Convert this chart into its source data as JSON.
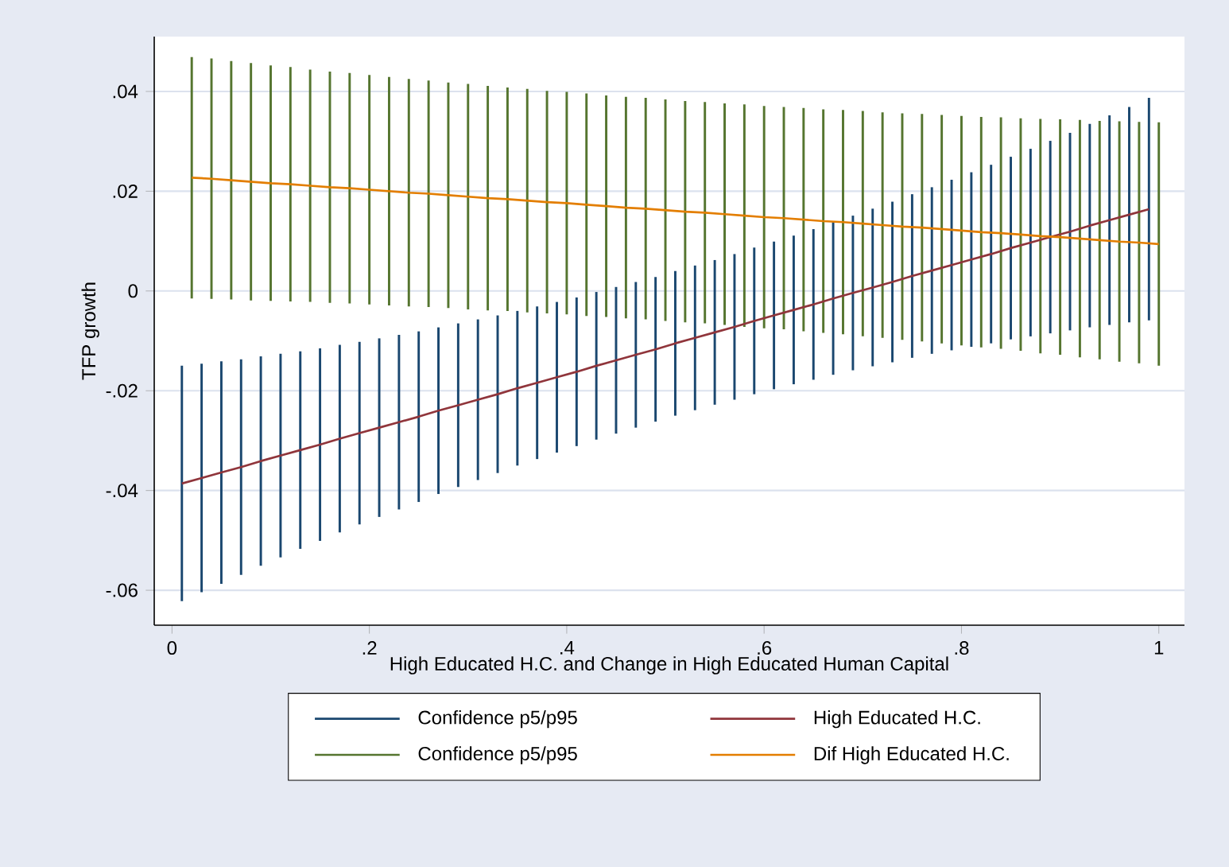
{
  "chart_data": {
    "type": "line",
    "xlabel": "High Educated H.C. and Change in High Educated Human Capital",
    "ylabel": "TFP growth",
    "xlim": [
      -0.018,
      1.026
    ],
    "ylim": [
      -0.067,
      0.051
    ],
    "xticks": [
      0,
      {
        "value": 0.2,
        "label": ".2"
      },
      {
        "value": 0.4,
        "label": ".4"
      },
      {
        "value": 0.6,
        "label": ".6"
      },
      {
        "value": 0.8,
        "label": ".8"
      },
      1
    ],
    "yticks": [
      {
        "value": -0.06,
        "label": "-.06"
      },
      {
        "value": -0.04,
        "label": "-.04"
      },
      {
        "value": -0.02,
        "label": "-.02"
      },
      0,
      {
        "value": 0.02,
        "label": ".02"
      },
      {
        "value": 0.04,
        "label": ".04"
      }
    ],
    "grid": "y",
    "legend": "bottom",
    "series": [
      {
        "name": "Confidence p5/p95",
        "type": "bar",
        "color": "#1a476f",
        "x": [
          0.01,
          0.03,
          0.05,
          0.07,
          0.09,
          0.11,
          0.13,
          0.15,
          0.17,
          0.19,
          0.21,
          0.23,
          0.25,
          0.27,
          0.29,
          0.31,
          0.33,
          0.35,
          0.37,
          0.39,
          0.41,
          0.43,
          0.45,
          0.47,
          0.49,
          0.51,
          0.53,
          0.55,
          0.57,
          0.59,
          0.61,
          0.63,
          0.65,
          0.67,
          0.69,
          0.71,
          0.73,
          0.75,
          0.77,
          0.79,
          0.81,
          0.83,
          0.85,
          0.87,
          0.89,
          0.91,
          0.93,
          0.95,
          0.97,
          0.99
        ],
        "base": [
          -0.0622,
          -0.0604,
          -0.0587,
          -0.0569,
          -0.0551,
          -0.0534,
          -0.0517,
          -0.0501,
          -0.0484,
          -0.0468,
          -0.0453,
          -0.0438,
          -0.0423,
          -0.0407,
          -0.0393,
          -0.0379,
          -0.0365,
          -0.035,
          -0.0337,
          -0.0324,
          -0.0311,
          -0.0298,
          -0.0286,
          -0.0274,
          -0.0262,
          -0.025,
          -0.0239,
          -0.0228,
          -0.0218,
          -0.0207,
          -0.0197,
          -0.0187,
          -0.0178,
          -0.0168,
          -0.0159,
          -0.0151,
          -0.0143,
          -0.0134,
          -0.0126,
          -0.0119,
          -0.0112,
          -0.0105,
          -0.0097,
          -0.0091,
          -0.0085,
          -0.0079,
          -0.0073,
          -0.0068,
          -0.0063,
          -0.0059
        ],
        "values": [
          0.0472,
          0.0458,
          0.0446,
          0.0432,
          0.042,
          0.0408,
          0.0396,
          0.0386,
          0.0376,
          0.0366,
          0.0358,
          0.035,
          0.0342,
          0.0334,
          0.0328,
          0.0322,
          0.0316,
          0.031,
          0.0306,
          0.0302,
          0.0298,
          0.0296,
          0.0294,
          0.0292,
          0.029,
          0.029,
          0.029,
          0.029,
          0.0292,
          0.0294,
          0.0296,
          0.0298,
          0.0302,
          0.0306,
          0.031,
          0.0316,
          0.0322,
          0.0328,
          0.0334,
          0.0342,
          0.035,
          0.0358,
          0.0366,
          0.0376,
          0.0386,
          0.0396,
          0.0408,
          0.042,
          0.0432,
          0.0446
        ]
      },
      {
        "name": "High Educated H.C.",
        "color": "#90353b",
        "x": [
          0.01,
          0.03,
          0.05,
          0.07,
          0.09,
          0.11,
          0.13,
          0.15,
          0.17,
          0.19,
          0.21,
          0.23,
          0.25,
          0.27,
          0.29,
          0.31,
          0.33,
          0.35,
          0.37,
          0.39,
          0.41,
          0.43,
          0.45,
          0.47,
          0.49,
          0.51,
          0.53,
          0.55,
          0.57,
          0.59,
          0.61,
          0.63,
          0.65,
          0.67,
          0.69,
          0.71,
          0.73,
          0.75,
          0.77,
          0.79,
          0.81,
          0.83,
          0.85,
          0.87,
          0.89,
          0.91,
          0.93,
          0.95,
          0.97,
          0.99
        ],
        "values": [
          -0.0386,
          -0.0375,
          -0.0364,
          -0.0353,
          -0.0341,
          -0.033,
          -0.0319,
          -0.0308,
          -0.0296,
          -0.0285,
          -0.0274,
          -0.0263,
          -0.0252,
          -0.024,
          -0.0229,
          -0.0218,
          -0.0207,
          -0.0195,
          -0.0184,
          -0.0173,
          -0.0162,
          -0.015,
          -0.0139,
          -0.0128,
          -0.0117,
          -0.0105,
          -0.0094,
          -0.0083,
          -0.0072,
          -0.006,
          -0.0049,
          -0.0038,
          -0.0027,
          -0.0015,
          -0.0004,
          0.0007,
          0.0018,
          0.003,
          0.0041,
          0.0052,
          0.0063,
          0.0074,
          0.0086,
          0.0097,
          0.0108,
          0.0119,
          0.0131,
          0.0142,
          0.0153,
          0.0164
        ]
      },
      {
        "name": "Confidence p5/p95",
        "type": "bar",
        "color": "#55752f",
        "x": [
          0.02,
          0.04,
          0.06,
          0.08,
          0.1,
          0.12,
          0.14,
          0.16,
          0.18,
          0.2,
          0.22,
          0.24,
          0.26,
          0.28,
          0.3,
          0.32,
          0.34,
          0.36,
          0.38,
          0.4,
          0.42,
          0.44,
          0.46,
          0.48,
          0.5,
          0.52,
          0.54,
          0.56,
          0.58,
          0.6,
          0.62,
          0.64,
          0.66,
          0.68,
          0.7,
          0.72,
          0.74,
          0.76,
          0.78,
          0.8,
          0.82,
          0.84,
          0.86,
          0.88,
          0.9,
          0.92,
          0.94,
          0.96,
          0.98,
          1.0
        ],
        "base": [
          -0.0015,
          -0.0016,
          -0.0017,
          -0.0019,
          -0.002,
          -0.0021,
          -0.0022,
          -0.0024,
          -0.0025,
          -0.0027,
          -0.0029,
          -0.0031,
          -0.0032,
          -0.0034,
          -0.0037,
          -0.0039,
          -0.004,
          -0.0043,
          -0.0045,
          -0.0047,
          -0.005,
          -0.0052,
          -0.0055,
          -0.0057,
          -0.006,
          -0.0063,
          -0.0065,
          -0.0068,
          -0.0072,
          -0.0075,
          -0.0077,
          -0.0081,
          -0.0084,
          -0.0087,
          -0.0091,
          -0.0094,
          -0.0098,
          -0.0101,
          -0.0105,
          -0.0109,
          -0.0113,
          -0.0116,
          -0.012,
          -0.0125,
          -0.0128,
          -0.0133,
          -0.0137,
          -0.0142,
          -0.0145,
          -0.015
        ],
        "values": [
          0.0484,
          0.0482,
          0.0478,
          0.0476,
          0.0472,
          0.047,
          0.0466,
          0.0464,
          0.0462,
          0.046,
          0.0458,
          0.0456,
          0.0454,
          0.0452,
          0.0452,
          0.045,
          0.0448,
          0.0448,
          0.0446,
          0.0446,
          0.0446,
          0.0444,
          0.0444,
          0.0444,
          0.0444,
          0.0444,
          0.0444,
          0.0444,
          0.0446,
          0.0446,
          0.0446,
          0.0448,
          0.0448,
          0.045,
          0.0452,
          0.0452,
          0.0454,
          0.0456,
          0.0458,
          0.046,
          0.0462,
          0.0464,
          0.0466,
          0.047,
          0.0472,
          0.0476,
          0.0478,
          0.0482,
          0.0484,
          0.0488
        ]
      },
      {
        "name": "Dif High Educated H.C.",
        "color": "#e37e00",
        "x": [
          0.02,
          0.04,
          0.06,
          0.08,
          0.1,
          0.12,
          0.14,
          0.16,
          0.18,
          0.2,
          0.22,
          0.24,
          0.26,
          0.28,
          0.3,
          0.32,
          0.34,
          0.36,
          0.38,
          0.4,
          0.42,
          0.44,
          0.46,
          0.48,
          0.5,
          0.52,
          0.54,
          0.56,
          0.58,
          0.6,
          0.62,
          0.64,
          0.66,
          0.68,
          0.7,
          0.72,
          0.74,
          0.76,
          0.78,
          0.8,
          0.82,
          0.84,
          0.86,
          0.88,
          0.9,
          0.92,
          0.94,
          0.96,
          0.98,
          1.0
        ],
        "values": [
          0.0227,
          0.0225,
          0.0222,
          0.0219,
          0.0216,
          0.0214,
          0.0211,
          0.0208,
          0.0206,
          0.0203,
          0.02,
          0.0197,
          0.0195,
          0.0192,
          0.0189,
          0.0186,
          0.0184,
          0.0181,
          0.0178,
          0.0176,
          0.0173,
          0.017,
          0.0167,
          0.0165,
          0.0162,
          0.0159,
          0.0157,
          0.0154,
          0.0151,
          0.0148,
          0.0146,
          0.0143,
          0.014,
          0.0138,
          0.0135,
          0.0132,
          0.0129,
          0.0127,
          0.0124,
          0.0121,
          0.0118,
          0.0116,
          0.0113,
          0.011,
          0.0108,
          0.0105,
          0.0102,
          0.0099,
          0.0097,
          0.0094
        ]
      }
    ]
  }
}
